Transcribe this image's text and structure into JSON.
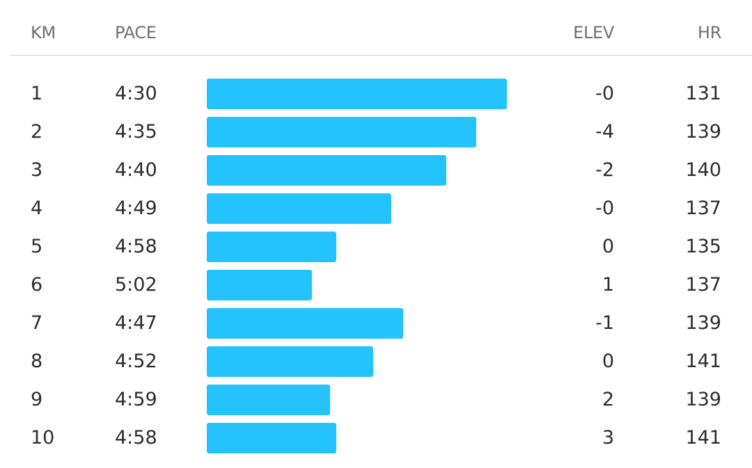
{
  "theme": {
    "bar_color": "#24c3fd"
  },
  "header": {
    "km": "KM",
    "pace": "PACE",
    "elev": "ELEV",
    "hr": "HR"
  },
  "splits": [
    {
      "km": "1",
      "pace": "4:30",
      "pace_seconds": 270,
      "elev": "-0",
      "hr": "131"
    },
    {
      "km": "2",
      "pace": "4:35",
      "pace_seconds": 275,
      "elev": "-4",
      "hr": "139"
    },
    {
      "km": "3",
      "pace": "4:40",
      "pace_seconds": 280,
      "elev": "-2",
      "hr": "140"
    },
    {
      "km": "4",
      "pace": "4:49",
      "pace_seconds": 289,
      "elev": "-0",
      "hr": "137"
    },
    {
      "km": "5",
      "pace": "4:58",
      "pace_seconds": 298,
      "elev": "0",
      "hr": "135"
    },
    {
      "km": "6",
      "pace": "5:02",
      "pace_seconds": 302,
      "elev": "1",
      "hr": "137"
    },
    {
      "km": "7",
      "pace": "4:47",
      "pace_seconds": 287,
      "elev": "-1",
      "hr": "139"
    },
    {
      "km": "8",
      "pace": "4:52",
      "pace_seconds": 292,
      "elev": "0",
      "hr": "141"
    },
    {
      "km": "9",
      "pace": "4:59",
      "pace_seconds": 299,
      "elev": "2",
      "hr": "139"
    },
    {
      "km": "10",
      "pace": "4:58",
      "pace_seconds": 298,
      "elev": "3",
      "hr": "141"
    }
  ]
}
